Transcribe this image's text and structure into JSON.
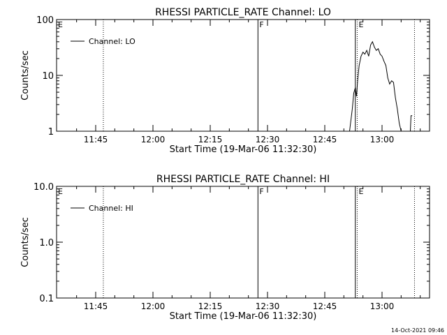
{
  "footer_timestamp": "14-Oct-2021 09:46",
  "chart_data": [
    {
      "type": "line",
      "title": "RHESSI PARTICLE_RATE Channel: LO",
      "xlabel": "Start Time (19-Mar-06 11:32:30)",
      "ylabel": "Counts/sec",
      "yscale": "log",
      "ylim": [
        1,
        100
      ],
      "xlim_minutes": [
        36,
        90
      ],
      "xticks": [
        {
          "minute": 45,
          "label": "11:45"
        },
        {
          "minute": 60,
          "label": "12:00"
        },
        {
          "minute": 75,
          "label": "12:15"
        },
        {
          "minute": 90,
          "label": "12:30"
        },
        {
          "minute": 105,
          "label": "12:45"
        },
        {
          "minute": 120,
          "label": "13:00"
        }
      ],
      "yticks": [
        {
          "value": 1,
          "label": "1"
        },
        {
          "value": 10,
          "label": "10"
        },
        {
          "value": 100,
          "label": "100"
        }
      ],
      "legend": {
        "label": "Channel: LO",
        "placement": "top-left"
      },
      "markers": [
        {
          "minute": 47,
          "style": "dotted",
          "label": ""
        },
        {
          "minute": 87.5,
          "style": "solid",
          "label": "F"
        },
        {
          "minute": 113,
          "style": "solid",
          "label": ""
        },
        {
          "minute": 113.5,
          "style": "dotted",
          "label": "E"
        },
        {
          "minute": 128.5,
          "style": "dotted",
          "label": ""
        }
      ],
      "corner_labels": [
        {
          "minute": 36,
          "label": "E"
        }
      ],
      "series": [
        {
          "x": [
            111.5,
            112.2,
            112.6,
            113.0,
            113.3,
            113.6,
            114.0,
            114.5,
            115.0,
            115.5,
            116.0,
            116.5,
            117.0,
            117.5,
            118.0,
            118.5,
            119.0,
            119.5,
            120.0,
            120.5,
            121.0,
            121.5,
            122.0,
            122.5,
            123.0,
            123.5,
            124.0,
            124.5,
            125.0,
            125.5,
            126.0
          ],
          "y": [
            1.0,
            2.5,
            4.8,
            6.0,
            4.2,
            8.0,
            15.0,
            22.0,
            26.0,
            24.0,
            28.0,
            22.0,
            35.0,
            40.0,
            32.0,
            28.0,
            30.0,
            24.0,
            22.0,
            18.0,
            15.0,
            9.0,
            7.0,
            8.0,
            7.5,
            4.0,
            2.5,
            1.4,
            1.0,
            1.0,
            1.0
          ]
        },
        {
          "x": [
            127.4,
            127.6,
            127.9
          ],
          "y": [
            1.0,
            1.9,
            1.9
          ]
        }
      ]
    },
    {
      "type": "line",
      "title": "RHESSI PARTICLE_RATE Channel: HI",
      "xlabel": "Start Time (19-Mar-06 11:32:30)",
      "ylabel": "Counts/sec",
      "yscale": "log",
      "ylim": [
        0.1,
        10.0
      ],
      "xticks": [
        {
          "minute": 45,
          "label": "11:45"
        },
        {
          "minute": 60,
          "label": "12:00"
        },
        {
          "minute": 75,
          "label": "12:15"
        },
        {
          "minute": 90,
          "label": "12:30"
        },
        {
          "minute": 105,
          "label": "12:45"
        },
        {
          "minute": 120,
          "label": "13:00"
        }
      ],
      "yticks": [
        {
          "value": 0.1,
          "label": "0.1"
        },
        {
          "value": 1.0,
          "label": "1.0"
        },
        {
          "value": 10.0,
          "label": "10.0"
        }
      ],
      "legend": {
        "label": "Channel: HI",
        "placement": "top-left"
      },
      "markers": [
        {
          "minute": 47,
          "style": "dotted",
          "label": ""
        },
        {
          "minute": 87.5,
          "style": "solid",
          "label": "F"
        },
        {
          "minute": 113,
          "style": "solid",
          "label": ""
        },
        {
          "minute": 113.5,
          "style": "dotted",
          "label": "E"
        },
        {
          "minute": 128.5,
          "style": "dotted",
          "label": ""
        }
      ],
      "corner_labels": [
        {
          "minute": 36,
          "label": "E"
        }
      ],
      "series": []
    }
  ]
}
